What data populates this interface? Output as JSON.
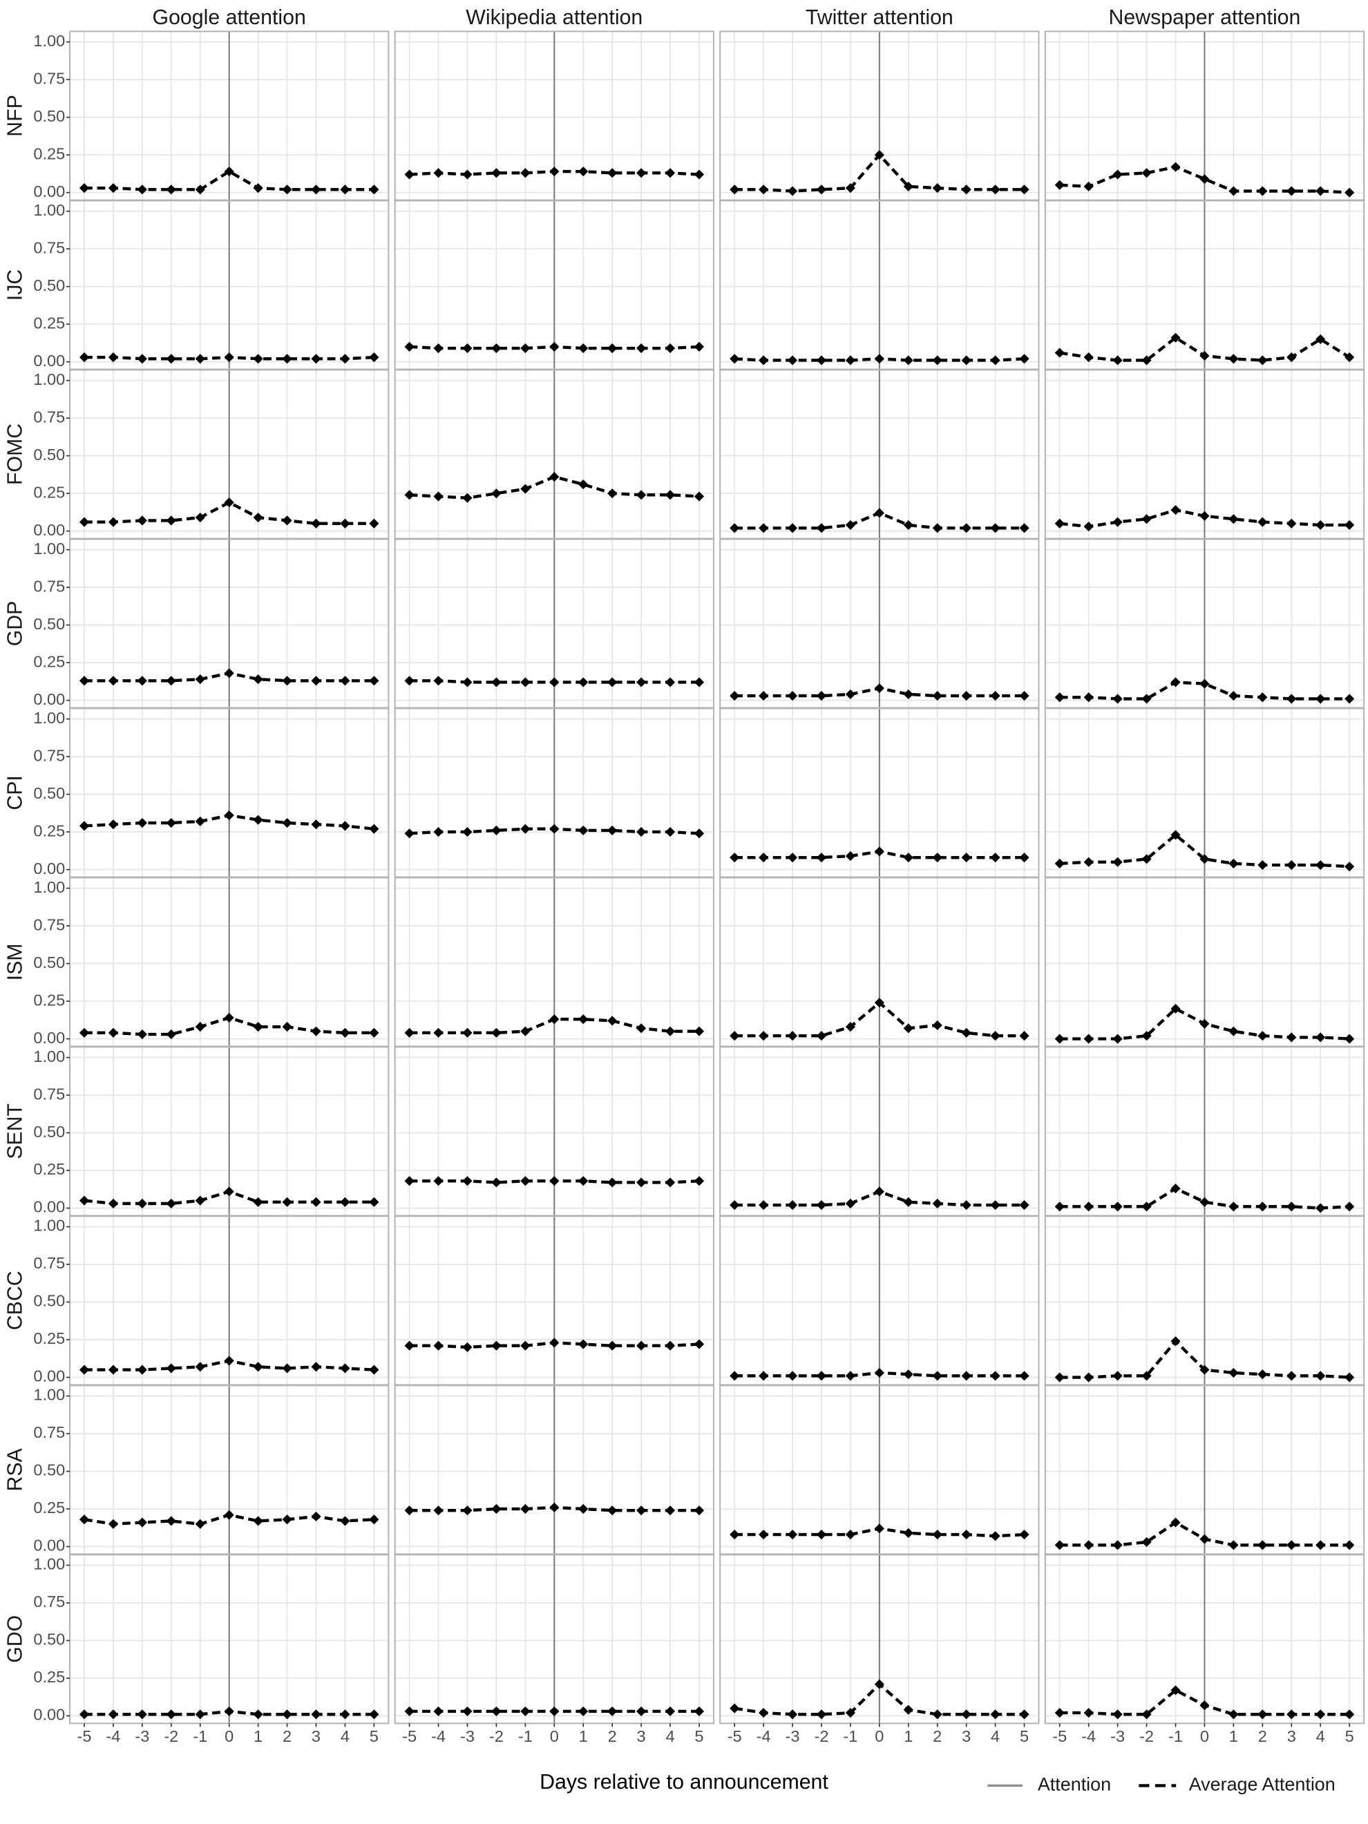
{
  "chart_data": {
    "type": "line",
    "columns": [
      "Google attention",
      "Wikipedia attention",
      "Twitter attention",
      "Newspaper attention"
    ],
    "rows": [
      "NFP",
      "IJC",
      "FOMC",
      "GDP",
      "CPI",
      "ISM",
      "SENT",
      "CBCC",
      "RSA",
      "GDO"
    ],
    "x_label": "Days relative to announcement",
    "x": [
      -5,
      -4,
      -3,
      -2,
      -1,
      0,
      1,
      2,
      3,
      4,
      5
    ],
    "xlim": [
      -5.5,
      5.5
    ],
    "xticks": [
      -5,
      -4,
      -3,
      -2,
      -1,
      0,
      1,
      2,
      3,
      4,
      5
    ],
    "ylim": [
      -0.05,
      1.07
    ],
    "yticks": [
      {
        "value": 0,
        "label": "0.00"
      },
      {
        "value": 0.25,
        "label": "0.25"
      },
      {
        "value": 0.5,
        "label": "0.50"
      },
      {
        "value": 0.75,
        "label": "0.75"
      },
      {
        "value": 1,
        "label": "1.00"
      }
    ],
    "vline": 0,
    "grid": true,
    "series": [
      {
        "name": "Attention",
        "color": "#8c8c8c"
      },
      {
        "name": "Average Attention",
        "color": "#000000"
      }
    ],
    "average": [
      [
        [
          0.03,
          0.03,
          0.02,
          0.02,
          0.02,
          0.14,
          0.03,
          0.02,
          0.02,
          0.02,
          0.02
        ],
        [
          0.12,
          0.13,
          0.12,
          0.13,
          0.13,
          0.14,
          0.14,
          0.13,
          0.13,
          0.13,
          0.12
        ],
        [
          0.02,
          0.02,
          0.01,
          0.02,
          0.03,
          0.25,
          0.04,
          0.03,
          0.02,
          0.02,
          0.02
        ],
        [
          0.05,
          0.04,
          0.12,
          0.13,
          0.17,
          0.09,
          0.01,
          0.01,
          0.01,
          0.01,
          0.0
        ]
      ],
      [
        [
          0.03,
          0.03,
          0.02,
          0.02,
          0.02,
          0.03,
          0.02,
          0.02,
          0.02,
          0.02,
          0.03
        ],
        [
          0.1,
          0.09,
          0.09,
          0.09,
          0.09,
          0.1,
          0.09,
          0.09,
          0.09,
          0.09,
          0.1
        ],
        [
          0.02,
          0.01,
          0.01,
          0.01,
          0.01,
          0.02,
          0.01,
          0.01,
          0.01,
          0.01,
          0.02
        ],
        [
          0.06,
          0.03,
          0.01,
          0.01,
          0.16,
          0.04,
          0.02,
          0.01,
          0.03,
          0.15,
          0.03
        ]
      ],
      [
        [
          0.06,
          0.06,
          0.07,
          0.07,
          0.09,
          0.19,
          0.09,
          0.07,
          0.05,
          0.05,
          0.05
        ],
        [
          0.24,
          0.23,
          0.22,
          0.25,
          0.28,
          0.36,
          0.31,
          0.25,
          0.24,
          0.24,
          0.23
        ],
        [
          0.02,
          0.02,
          0.02,
          0.02,
          0.04,
          0.12,
          0.04,
          0.02,
          0.02,
          0.02,
          0.02
        ],
        [
          0.05,
          0.03,
          0.06,
          0.08,
          0.14,
          0.1,
          0.08,
          0.06,
          0.05,
          0.04,
          0.04
        ]
      ],
      [
        [
          0.13,
          0.13,
          0.13,
          0.13,
          0.14,
          0.18,
          0.14,
          0.13,
          0.13,
          0.13,
          0.13
        ],
        [
          0.13,
          0.13,
          0.12,
          0.12,
          0.12,
          0.12,
          0.12,
          0.12,
          0.12,
          0.12,
          0.12
        ],
        [
          0.03,
          0.03,
          0.03,
          0.03,
          0.04,
          0.08,
          0.04,
          0.03,
          0.03,
          0.03,
          0.03
        ],
        [
          0.02,
          0.02,
          0.01,
          0.01,
          0.12,
          0.11,
          0.03,
          0.02,
          0.01,
          0.01,
          0.01
        ]
      ],
      [
        [
          0.29,
          0.3,
          0.31,
          0.31,
          0.32,
          0.36,
          0.33,
          0.31,
          0.3,
          0.29,
          0.27
        ],
        [
          0.24,
          0.25,
          0.25,
          0.26,
          0.27,
          0.27,
          0.26,
          0.26,
          0.25,
          0.25,
          0.24
        ],
        [
          0.08,
          0.08,
          0.08,
          0.08,
          0.09,
          0.12,
          0.08,
          0.08,
          0.08,
          0.08,
          0.08
        ],
        [
          0.04,
          0.05,
          0.05,
          0.07,
          0.23,
          0.07,
          0.04,
          0.03,
          0.03,
          0.03,
          0.02
        ]
      ],
      [
        [
          0.04,
          0.04,
          0.03,
          0.03,
          0.08,
          0.14,
          0.08,
          0.08,
          0.05,
          0.04,
          0.04
        ],
        [
          0.04,
          0.04,
          0.04,
          0.04,
          0.05,
          0.13,
          0.13,
          0.12,
          0.07,
          0.05,
          0.05
        ],
        [
          0.02,
          0.02,
          0.02,
          0.02,
          0.08,
          0.24,
          0.07,
          0.09,
          0.04,
          0.02,
          0.02
        ],
        [
          0.0,
          0.0,
          0.0,
          0.02,
          0.2,
          0.1,
          0.05,
          0.02,
          0.01,
          0.01,
          0.0
        ]
      ],
      [
        [
          0.05,
          0.03,
          0.03,
          0.03,
          0.05,
          0.11,
          0.04,
          0.04,
          0.04,
          0.04,
          0.04
        ],
        [
          0.18,
          0.18,
          0.18,
          0.17,
          0.18,
          0.18,
          0.18,
          0.17,
          0.17,
          0.17,
          0.18
        ],
        [
          0.02,
          0.02,
          0.02,
          0.02,
          0.03,
          0.11,
          0.04,
          0.03,
          0.02,
          0.02,
          0.02
        ],
        [
          0.01,
          0.01,
          0.01,
          0.01,
          0.13,
          0.04,
          0.01,
          0.01,
          0.01,
          0.0,
          0.01
        ]
      ],
      [
        [
          0.05,
          0.05,
          0.05,
          0.06,
          0.07,
          0.11,
          0.07,
          0.06,
          0.07,
          0.06,
          0.05
        ],
        [
          0.21,
          0.21,
          0.2,
          0.21,
          0.21,
          0.23,
          0.22,
          0.21,
          0.21,
          0.21,
          0.22
        ],
        [
          0.01,
          0.01,
          0.01,
          0.01,
          0.01,
          0.03,
          0.02,
          0.01,
          0.01,
          0.01,
          0.01
        ],
        [
          0.0,
          0.0,
          0.01,
          0.01,
          0.24,
          0.05,
          0.03,
          0.02,
          0.01,
          0.01,
          0.0
        ]
      ],
      [
        [
          0.18,
          0.15,
          0.16,
          0.17,
          0.15,
          0.21,
          0.17,
          0.18,
          0.2,
          0.17,
          0.18
        ],
        [
          0.24,
          0.24,
          0.24,
          0.25,
          0.25,
          0.26,
          0.25,
          0.24,
          0.24,
          0.24,
          0.24
        ],
        [
          0.08,
          0.08,
          0.08,
          0.08,
          0.08,
          0.12,
          0.09,
          0.08,
          0.08,
          0.07,
          0.08
        ],
        [
          0.01,
          0.01,
          0.01,
          0.03,
          0.16,
          0.05,
          0.01,
          0.01,
          0.01,
          0.01,
          0.01
        ]
      ],
      [
        [
          0.01,
          0.01,
          0.01,
          0.01,
          0.01,
          0.03,
          0.01,
          0.01,
          0.01,
          0.01,
          0.01
        ],
        [
          0.03,
          0.03,
          0.03,
          0.03,
          0.03,
          0.03,
          0.03,
          0.03,
          0.03,
          0.03,
          0.03
        ],
        [
          0.05,
          0.02,
          0.01,
          0.01,
          0.02,
          0.21,
          0.04,
          0.01,
          0.01,
          0.01,
          0.01
        ],
        [
          0.02,
          0.02,
          0.01,
          0.01,
          0.17,
          0.07,
          0.01,
          0.01,
          0.01,
          0.01,
          0.01
        ]
      ]
    ]
  }
}
